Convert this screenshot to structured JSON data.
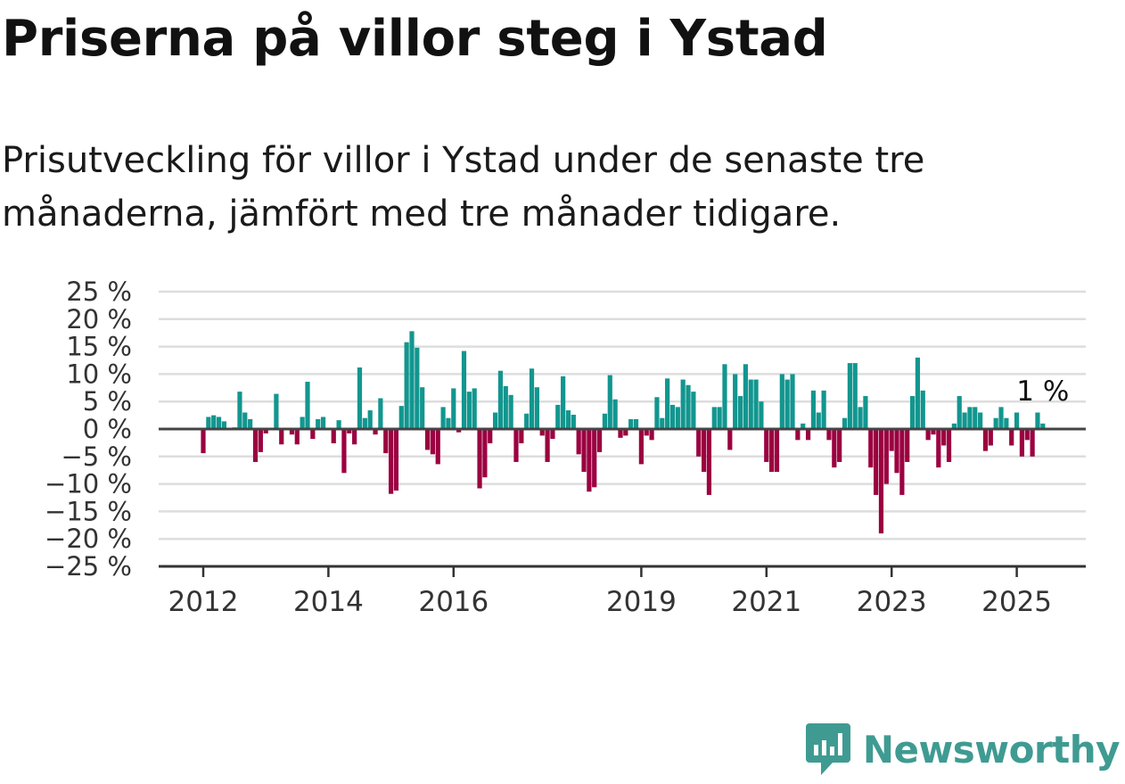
{
  "title": "Priserna på villor steg i Ystad",
  "subtitle": "Prisutveckling för villor i Ystad under de senaste tre månaderna, jämfört med tre månader tidigare.",
  "brand": {
    "name": "Newsworthy",
    "icon": "newsworthy-chart-logo-icon",
    "color": "#3f9b92"
  },
  "colors": {
    "positive": "#12968f",
    "negative": "#9b0040",
    "grid": "#dddddd",
    "axis": "#444444"
  },
  "chart_data": {
    "type": "bar",
    "ylabel": "",
    "xlabel": "",
    "ylim": [
      -25,
      25
    ],
    "yticks": [
      25,
      20,
      15,
      10,
      5,
      0,
      -5,
      -10,
      -15,
      -20,
      -25
    ],
    "ytick_labels": [
      "25 %",
      "20 %",
      "15 %",
      "10 %",
      "5 %",
      "0 %",
      "−5 %",
      "−10 %",
      "−15 %",
      "−20 %",
      "−25 %"
    ],
    "xticks": [
      {
        "label": "2012",
        "x": 2012.0
      },
      {
        "label": "2014",
        "x": 2014.0
      },
      {
        "label": "2016",
        "x": 2016.0
      },
      {
        "label": "2019",
        "x": 2019.0
      },
      {
        "label": "2021",
        "x": 2021.0
      },
      {
        "label": "2023",
        "x": 2023.0
      },
      {
        "label": "2025",
        "x": 2025.0
      }
    ],
    "x_start": 2012.0,
    "x_step": 0.08333,
    "grid": "horizontal",
    "last_value_label": "1 %",
    "values": [
      -4.4,
      2.2,
      2.5,
      2.2,
      1.4,
      0.0,
      0.3,
      6.8,
      3.0,
      1.8,
      -6.0,
      -4.2,
      -0.8,
      0.0,
      6.4,
      -2.8,
      0.0,
      -1.0,
      -2.8,
      2.2,
      8.6,
      -1.8,
      1.8,
      2.2,
      0.0,
      -2.6,
      1.6,
      -8.0,
      -0.8,
      -2.8,
      11.2,
      2.0,
      3.4,
      -1.0,
      5.6,
      -4.4,
      -11.8,
      -11.2,
      4.2,
      15.8,
      17.8,
      14.8,
      7.6,
      -3.8,
      -4.6,
      -6.4,
      4.0,
      2.0,
      7.4,
      -0.6,
      14.2,
      6.8,
      7.4,
      -10.8,
      -8.8,
      -2.6,
      3.0,
      10.6,
      7.8,
      6.2,
      -6.0,
      -2.6,
      2.8,
      11.0,
      7.6,
      -1.2,
      -6.0,
      -1.8,
      4.4,
      9.6,
      3.4,
      2.6,
      -4.6,
      -7.8,
      -11.4,
      -10.6,
      -4.2,
      2.8,
      9.8,
      5.4,
      -1.6,
      -1.2,
      1.8,
      1.8,
      -6.4,
      -1.2,
      -2.0,
      5.8,
      2.0,
      9.2,
      4.4,
      4.0,
      9.0,
      8.0,
      6.8,
      -5.0,
      -7.8,
      -12.0,
      4.0,
      4.0,
      11.8,
      -3.8,
      10.0,
      6.0,
      11.8,
      9.0,
      9.0,
      5.0,
      -6.0,
      -7.8,
      -7.8,
      10.0,
      9.0,
      10.0,
      -2.0,
      1.0,
      -2.0,
      7.0,
      3.0,
      7.0,
      -2.0,
      -7.0,
      -6.0,
      2.0,
      12.0,
      12.0,
      4.0,
      6.0,
      -7.0,
      -12.0,
      -19.0,
      -10.0,
      -4.0,
      -8.0,
      -12.0,
      -6.0,
      6.0,
      13.0,
      7.0,
      -2.0,
      -1.0,
      -7.0,
      -3.0,
      -6.0,
      1.0,
      6.0,
      3.0,
      4.0,
      4.0,
      3.0,
      -4.0,
      -3.0,
      2.0,
      4.0,
      2.0,
      -3.0,
      3.0,
      -5.0,
      -2.0,
      -5.0,
      3.0,
      1.0
    ]
  }
}
